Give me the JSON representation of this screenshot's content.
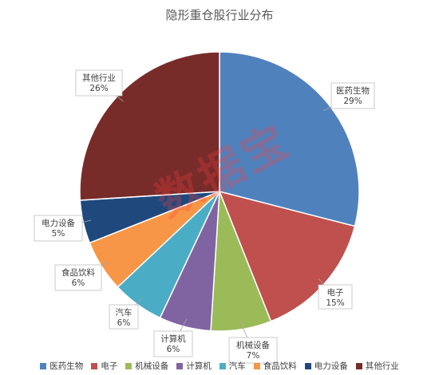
{
  "chart_data": {
    "type": "pie",
    "title": "隐形重仓股行业分布",
    "slices": [
      {
        "name": "医药生物",
        "value": 29,
        "label": "29%",
        "color": "#4F81BD"
      },
      {
        "name": "电子",
        "value": 15,
        "label": "15%",
        "color": "#C0504D"
      },
      {
        "name": "机械设备",
        "value": 7,
        "label": "7%",
        "color": "#9BBB59"
      },
      {
        "name": "计算机",
        "value": 6,
        "label": "6%",
        "color": "#8064A2"
      },
      {
        "name": "汽车",
        "value": 6,
        "label": "6%",
        "color": "#4BACC6"
      },
      {
        "name": "食品饮料",
        "value": 6,
        "label": "6%",
        "color": "#F79646"
      },
      {
        "name": "电力设备",
        "value": 5,
        "label": "5%",
        "color": "#1F497D"
      },
      {
        "name": "其他行业",
        "value": 26,
        "label": "26%",
        "color": "#772C2A"
      }
    ],
    "legend_position": "bottom",
    "watermark": "数据宝"
  }
}
